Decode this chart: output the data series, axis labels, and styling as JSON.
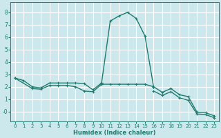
{
  "xlabel": "Humidex (Indice chaleur)",
  "xlim": [
    -0.5,
    23.5
  ],
  "ylim": [
    -0.8,
    8.8
  ],
  "xticks": [
    0,
    1,
    2,
    3,
    4,
    5,
    6,
    7,
    8,
    9,
    10,
    11,
    12,
    13,
    14,
    15,
    16,
    17,
    18,
    19,
    20,
    21,
    22,
    23
  ],
  "yticks": [
    0,
    1,
    2,
    3,
    4,
    5,
    6,
    7,
    8
  ],
  "ytick_labels": [
    "-0",
    "1",
    "2",
    "3",
    "4",
    "5",
    "6",
    "7",
    "8"
  ],
  "background_color": "#cce8ec",
  "grid_color": "#ffffff",
  "line_color_hex": "#217a6e",
  "line_width": 1.0,
  "marker_size": 2.5,
  "series": [
    {
      "x": [
        0,
        1,
        2,
        3,
        4,
        5,
        6,
        7,
        8,
        9,
        10
      ],
      "y": [
        2.7,
        2.5,
        2.0,
        1.9,
        2.3,
        2.3,
        2.3,
        2.3,
        2.25,
        1.75,
        2.3
      ]
    },
    {
      "x": [
        0,
        2,
        3,
        4,
        5,
        6,
        7,
        8,
        9,
        10
      ],
      "y": [
        2.7,
        1.85,
        1.8,
        2.1,
        2.1,
        2.1,
        2.0,
        1.65,
        1.6,
        2.2
      ]
    },
    {
      "x": [
        10,
        11,
        12,
        13,
        14,
        15,
        16
      ],
      "y": [
        2.3,
        7.3,
        7.7,
        8.0,
        7.5,
        6.1,
        2.0
      ]
    },
    {
      "x": [
        10,
        11,
        12,
        13,
        14,
        15,
        16
      ],
      "y": [
        2.2,
        2.2,
        2.2,
        2.2,
        2.2,
        2.2,
        2.0
      ]
    },
    {
      "x": [
        16,
        17,
        18,
        19,
        20,
        21,
        22,
        23
      ],
      "y": [
        2.0,
        1.55,
        1.85,
        1.35,
        1.2,
        -0.05,
        -0.1,
        -0.35
      ]
    },
    {
      "x": [
        16,
        17,
        18,
        19,
        20,
        21,
        22,
        23
      ],
      "y": [
        1.65,
        1.3,
        1.6,
        1.1,
        0.9,
        -0.2,
        -0.25,
        -0.5
      ]
    }
  ]
}
